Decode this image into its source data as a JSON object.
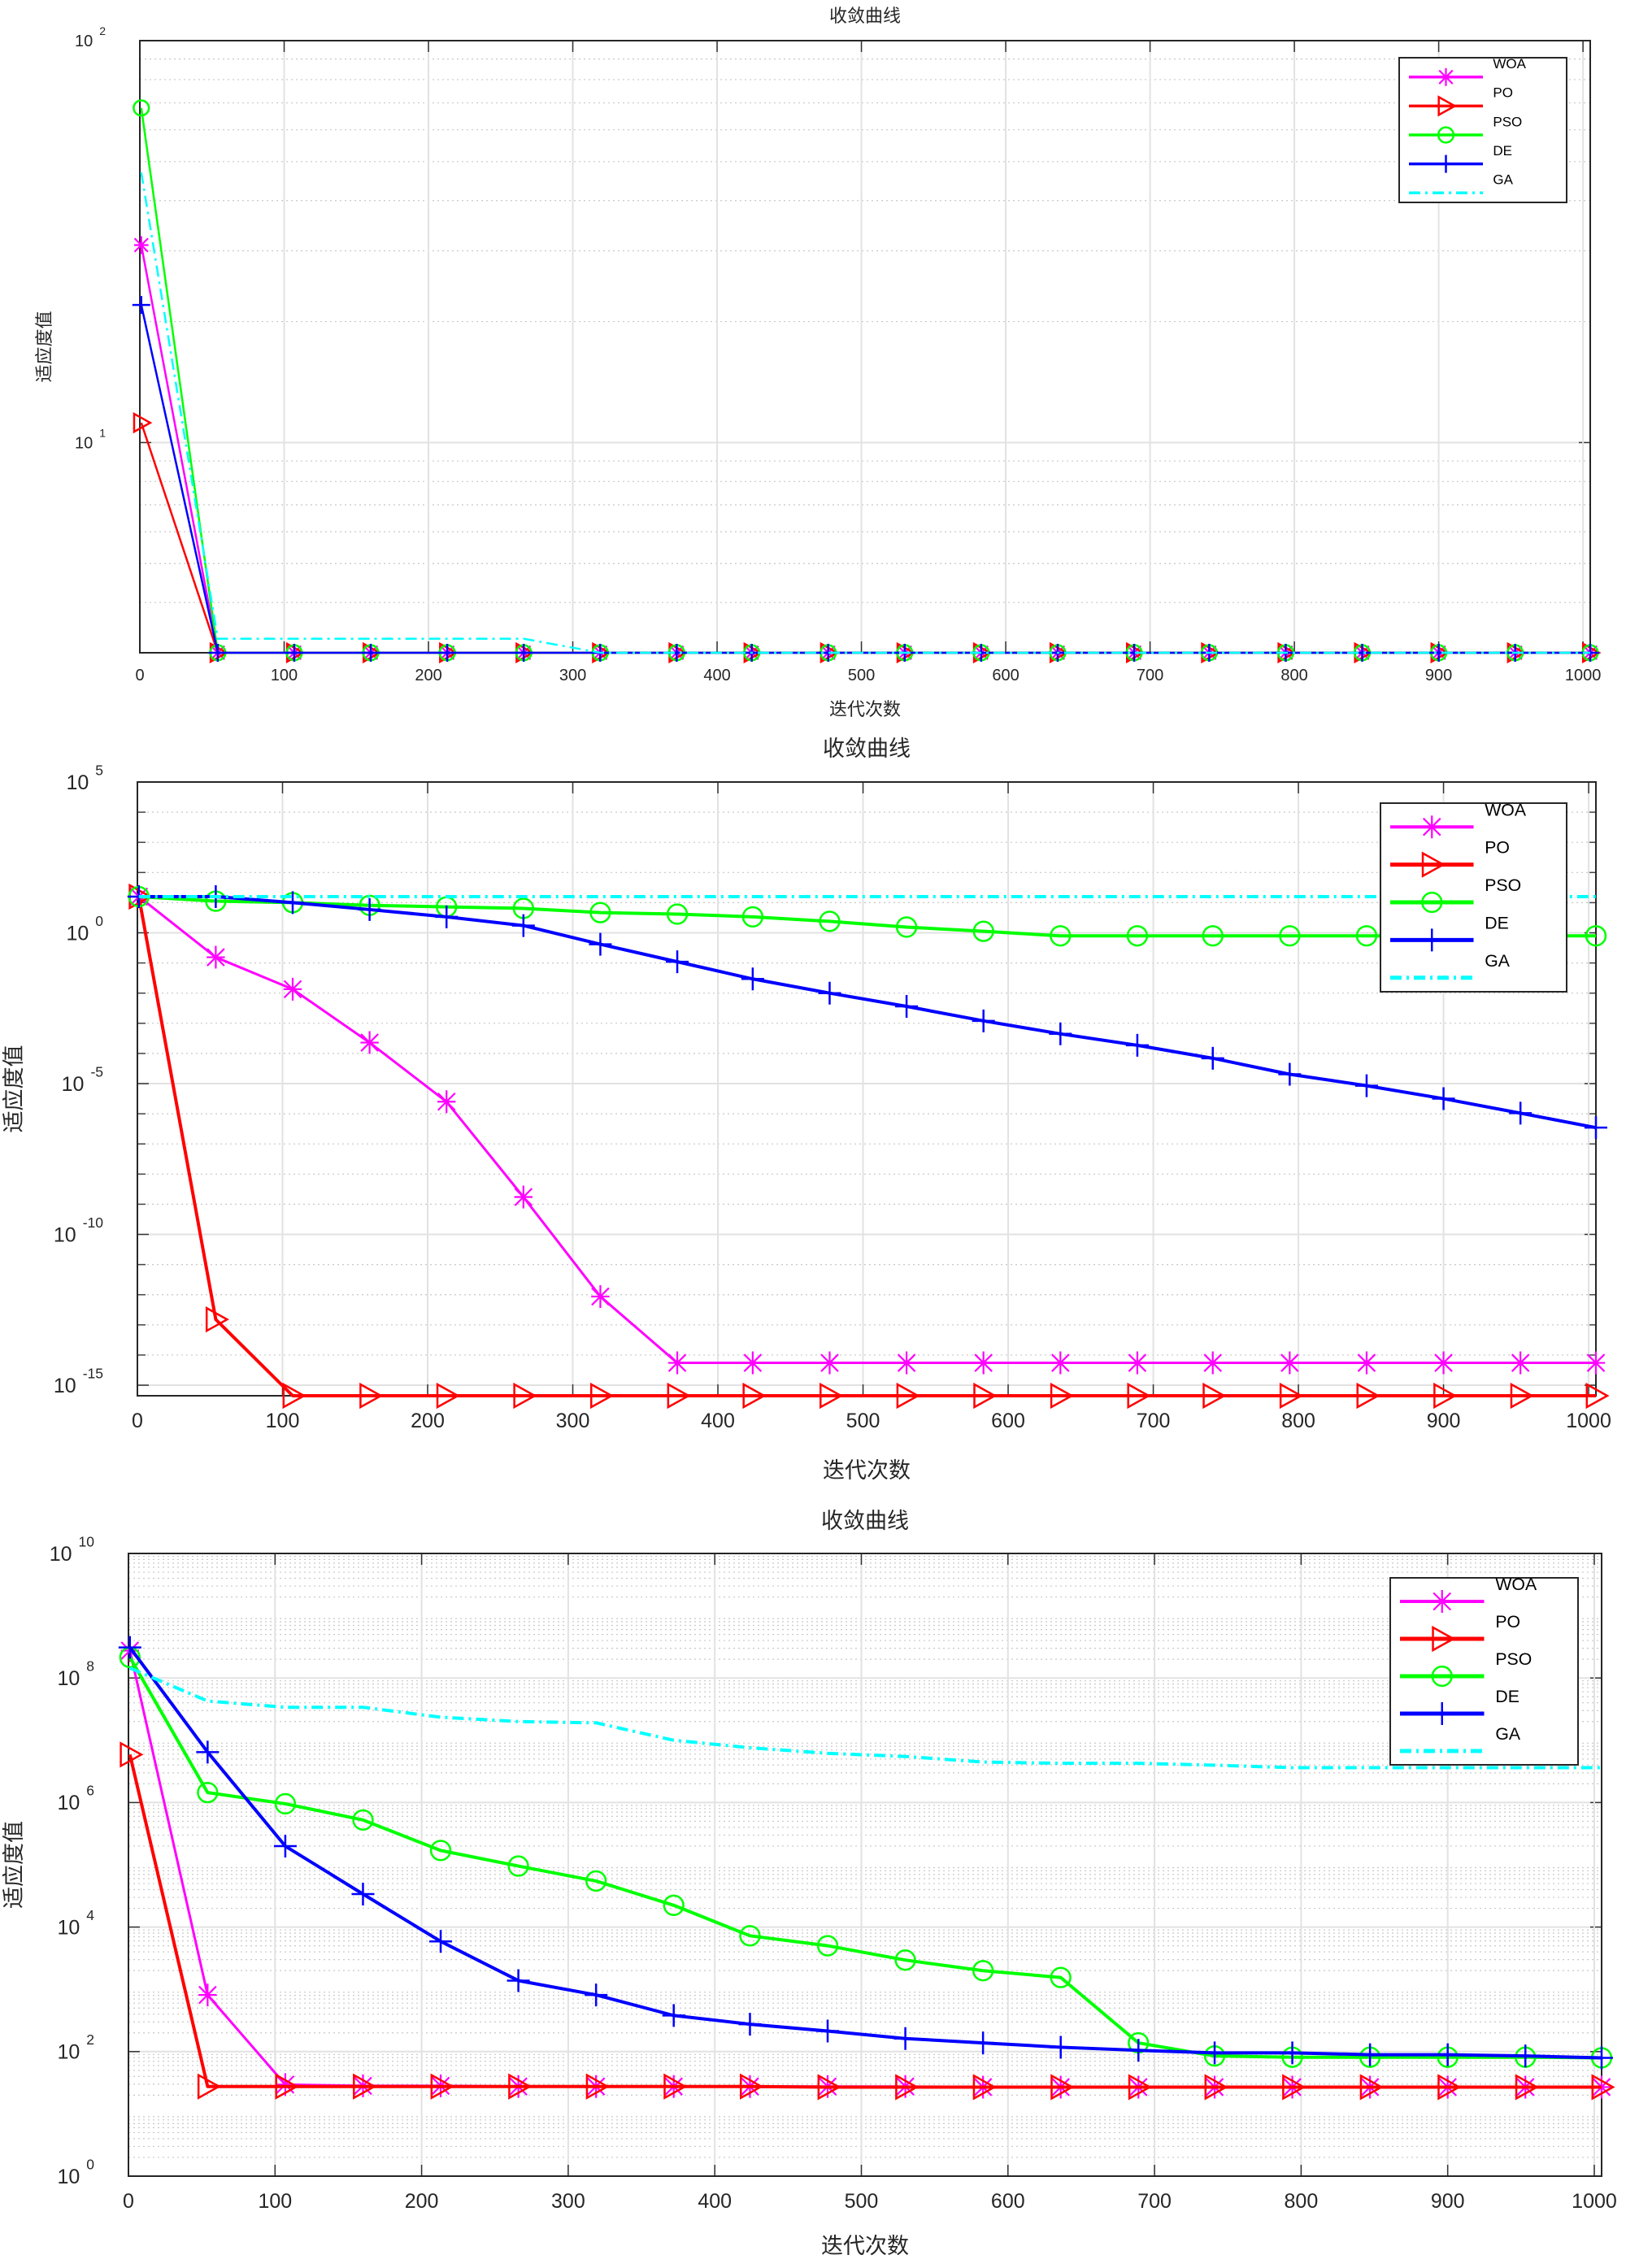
{
  "chart_data": [
    {
      "type": "line",
      "title": "收敛曲线",
      "xlabel": "迭代次数",
      "ylabel": "适应度值",
      "yscale": "log",
      "xlim": [
        0,
        1005
      ],
      "ylim_log10": [
        0.477,
        2
      ],
      "xticks": [
        0,
        100,
        200,
        300,
        400,
        500,
        600,
        700,
        800,
        900,
        1000
      ],
      "ytick_base": "10",
      "ytick_exponents": [
        2,
        1
      ],
      "grid": true,
      "legend_placement": "top-right",
      "x": [
        1,
        54,
        107,
        160,
        213,
        266,
        319,
        372,
        424,
        477,
        530,
        583,
        636,
        689,
        741,
        794,
        847,
        900,
        953,
        1005
      ],
      "series": [
        {
          "name": "WOA",
          "color": "#ff00ff",
          "marker": "star",
          "values": [
            31,
            3,
            3,
            3,
            3,
            3,
            3,
            3,
            3,
            3,
            3,
            3,
            3,
            3,
            3,
            3,
            3,
            3,
            3,
            3
          ]
        },
        {
          "name": "PO",
          "color": "#ff0000",
          "marker": "triangle-right",
          "values": [
            11.2,
            3,
            3,
            3,
            3,
            3,
            3,
            3,
            3,
            3,
            3,
            3,
            3,
            3,
            3,
            3,
            3,
            3,
            3,
            3
          ]
        },
        {
          "name": "PSO",
          "color": "#00ff00",
          "marker": "circle",
          "values": [
            68,
            3,
            3,
            3,
            3,
            3,
            3,
            3,
            3,
            3,
            3,
            3,
            3,
            3,
            3,
            3,
            3,
            3,
            3,
            3
          ]
        },
        {
          "name": "DE",
          "color": "#0000ff",
          "marker": "plus",
          "values": [
            22,
            3,
            3,
            3,
            3,
            3,
            3,
            3,
            3,
            3,
            3,
            3,
            3,
            3,
            3,
            3,
            3,
            3,
            3,
            3
          ]
        },
        {
          "name": "GA",
          "color": "#00ffff",
          "marker": "none",
          "dash": "dashdot",
          "values": [
            47,
            3.25,
            3.25,
            3.25,
            3.25,
            3.25,
            3,
            3,
            3,
            3,
            3,
            3,
            3,
            3,
            3,
            3,
            3,
            3,
            3,
            3
          ]
        }
      ]
    },
    {
      "type": "line",
      "title": "收敛曲线",
      "xlabel": "迭代次数",
      "ylabel": "适应度值",
      "yscale": "log",
      "xlim": [
        0,
        1005
      ],
      "ylim_log10": [
        -15.35,
        5
      ],
      "xticks": [
        0,
        100,
        200,
        300,
        400,
        500,
        600,
        700,
        800,
        900,
        1000
      ],
      "ytick_base": "10",
      "ytick_exponents": [
        5,
        0,
        -5,
        -10,
        -15
      ],
      "grid": true,
      "legend_placement": "top-right",
      "x": [
        1,
        54,
        107,
        160,
        213,
        266,
        319,
        372,
        424,
        477,
        530,
        583,
        636,
        689,
        741,
        794,
        847,
        900,
        953,
        1005
      ],
      "series_log10": true,
      "series": [
        {
          "name": "WOA",
          "color": "#ff00ff",
          "marker": "star",
          "values": [
            1.2,
            -0.81,
            -1.87,
            -3.64,
            -5.6,
            -8.76,
            -12.06,
            -14.26,
            -14.26,
            -14.26,
            -14.26,
            -14.26,
            -14.26,
            -14.26,
            -14.26,
            -14.26,
            -14.26,
            -14.26,
            -14.26,
            -14.26
          ]
        },
        {
          "name": "PO",
          "color": "#ff0000",
          "marker": "triangle-right",
          "values": [
            1.2,
            -12.82,
            -15.35,
            -15.35,
            -15.35,
            -15.35,
            -15.35,
            -15.35,
            -15.35,
            -15.35,
            -15.35,
            -15.35,
            -15.35,
            -15.35,
            -15.35,
            -15.35,
            -15.35,
            -15.35,
            -15.35,
            -15.35
          ]
        },
        {
          "name": "PSO",
          "color": "#00ff00",
          "marker": "circle",
          "values": [
            1.2,
            1.05,
            1.0,
            0.91,
            0.86,
            0.81,
            0.67,
            0.62,
            0.53,
            0.38,
            0.19,
            0.05,
            -0.1,
            -0.1,
            -0.1,
            -0.1,
            -0.1,
            -0.1,
            -0.1,
            -0.1
          ]
        },
        {
          "name": "DE",
          "color": "#0000ff",
          "marker": "plus",
          "values": [
            1.2,
            1.2,
            1.0,
            0.77,
            0.53,
            0.24,
            -0.38,
            -0.96,
            -1.53,
            -2.0,
            -2.44,
            -2.92,
            -3.35,
            -3.73,
            -4.16,
            -4.69,
            -5.07,
            -5.5,
            -5.98,
            -6.46
          ]
        },
        {
          "name": "GA",
          "color": "#00ffff",
          "marker": "none",
          "dash": "dashdot",
          "values": [
            1.2,
            1.2,
            1.2,
            1.2,
            1.2,
            1.2,
            1.2,
            1.2,
            1.2,
            1.2,
            1.2,
            1.2,
            1.2,
            1.2,
            1.2,
            1.2,
            1.2,
            1.2,
            1.2,
            1.2
          ]
        }
      ]
    },
    {
      "type": "line",
      "title": "收敛曲线",
      "xlabel": "迭代次数",
      "ylabel": "适应度值",
      "yscale": "log",
      "xlim": [
        0,
        1005
      ],
      "ylim_log10": [
        0,
        10
      ],
      "xticks": [
        0,
        100,
        200,
        300,
        400,
        500,
        600,
        700,
        800,
        900,
        1000
      ],
      "ytick_base": "10",
      "ytick_exponents": [
        10,
        8,
        6,
        4,
        2,
        0
      ],
      "grid": true,
      "legend_placement": "top-right",
      "x": [
        1,
        54,
        107,
        160,
        213,
        266,
        319,
        372,
        424,
        477,
        530,
        583,
        636,
        689,
        741,
        794,
        847,
        900,
        953,
        1005
      ],
      "series_log10": true,
      "series": [
        {
          "name": "WOA",
          "color": "#ff00ff",
          "marker": "star",
          "values": [
            8.44,
            2.91,
            1.47,
            1.45,
            1.45,
            1.44,
            1.44,
            1.44,
            1.44,
            1.44,
            1.44,
            1.43,
            1.43,
            1.43,
            1.43,
            1.43,
            1.43,
            1.43,
            1.43,
            1.43
          ]
        },
        {
          "name": "PO",
          "color": "#ff0000",
          "marker": "triangle-right",
          "values": [
            6.77,
            1.44,
            1.44,
            1.44,
            1.44,
            1.44,
            1.44,
            1.44,
            1.44,
            1.43,
            1.43,
            1.43,
            1.43,
            1.43,
            1.43,
            1.43,
            1.43,
            1.43,
            1.43,
            1.43
          ]
        },
        {
          "name": "PSO",
          "color": "#00ff00",
          "marker": "circle",
          "values": [
            8.33,
            6.16,
            5.98,
            5.72,
            5.23,
            4.98,
            4.74,
            4.35,
            3.86,
            3.7,
            3.47,
            3.3,
            3.19,
            2.14,
            1.93,
            1.91,
            1.91,
            1.91,
            1.91,
            1.9
          ]
        },
        {
          "name": "DE",
          "color": "#0000ff",
          "marker": "plus",
          "values": [
            8.49,
            6.81,
            5.3,
            4.53,
            3.77,
            3.14,
            2.91,
            2.58,
            2.44,
            2.33,
            2.21,
            2.14,
            2.07,
            2.02,
            1.98,
            1.98,
            1.95,
            1.95,
            1.93,
            1.9
          ]
        },
        {
          "name": "GA",
          "color": "#00ffff",
          "marker": "none",
          "dash": "dashdot",
          "values": [
            8.16,
            7.63,
            7.53,
            7.53,
            7.37,
            7.3,
            7.28,
            7.0,
            6.88,
            6.79,
            6.74,
            6.65,
            6.63,
            6.63,
            6.6,
            6.56,
            6.56,
            6.56,
            6.56,
            6.56
          ]
        }
      ]
    }
  ]
}
